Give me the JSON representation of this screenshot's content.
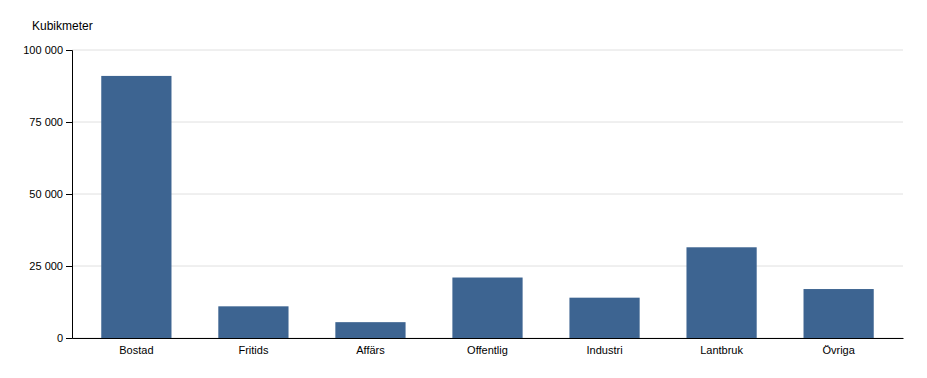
{
  "chart_data": {
    "type": "bar",
    "ylabel": "Kubikmeter",
    "categories": [
      "Bostad",
      "Fritids",
      "Affärs",
      "Offentlig",
      "Industri",
      "Lantbruk",
      "Övriga"
    ],
    "values": [
      91000,
      11000,
      5500,
      21000,
      14000,
      31500,
      17000
    ],
    "color": "#3d6491",
    "ylim": [
      0,
      100000
    ],
    "yticks": [
      0,
      {
        "value": 25000,
        "label": "25 000"
      },
      {
        "value": 50000,
        "label": "50 000"
      },
      {
        "value": 75000,
        "label": "75 000"
      },
      {
        "value": 100000,
        "label": "100 000"
      }
    ],
    "grid": true
  }
}
